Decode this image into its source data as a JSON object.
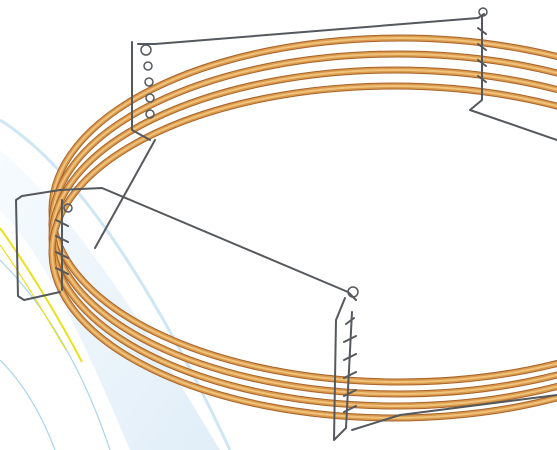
{
  "image": {
    "subject": "coiled-copper-tube-ring-with-wire-clip-supports",
    "coil_turns": 4,
    "wire_supports": 4,
    "colors": {
      "background": "#ffffff",
      "bg_swoosh_light": "#e4f1fa",
      "bg_swoosh_line": "#a9d4ee",
      "accent_yellow": "#e8e21a",
      "copper_light": "#f0c27a",
      "copper_mid": "#d99a4e",
      "copper_dark": "#a8642a",
      "wire": "#55585c",
      "wire_highlight": "#c9cdd1"
    }
  }
}
